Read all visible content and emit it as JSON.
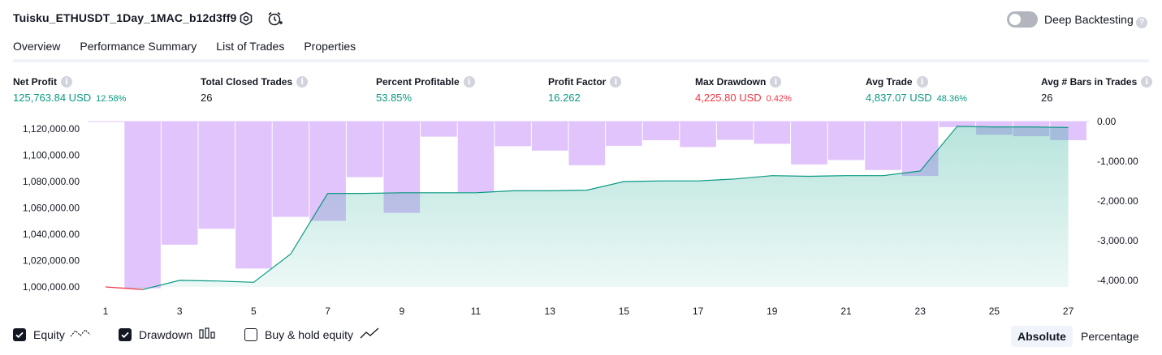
{
  "header": {
    "title": "Tuisku_ETHUSDT_1Day_1MAC_b12d3ff9",
    "deep_backtesting_label": "Deep Backtesting",
    "help_glyph": "?"
  },
  "tabs": [
    {
      "label": "Overview",
      "active": true
    },
    {
      "label": "Performance Summary"
    },
    {
      "label": "List of Trades"
    },
    {
      "label": "Properties"
    }
  ],
  "metrics": [
    {
      "label": "Net Profit",
      "value": "125,763.84 USD",
      "pct": "12.58%",
      "color": "#089981"
    },
    {
      "label": "Total Closed Trades",
      "value": "26",
      "pct": "",
      "color": "#131722"
    },
    {
      "label": "Percent Profitable",
      "value": "53.85%",
      "pct": "",
      "color": "#089981"
    },
    {
      "label": "Profit Factor",
      "value": "16.262",
      "pct": "",
      "color": "#089981"
    },
    {
      "label": "Max Drawdown",
      "value": "4,225.80 USD",
      "pct": "0.42%",
      "color": "#f23645"
    },
    {
      "label": "Avg Trade",
      "value": "4,837.07 USD",
      "pct": "48.36%",
      "color": "#089981"
    },
    {
      "label": "Avg # Bars in Trades",
      "value": "26",
      "pct": "",
      "color": "#131722"
    }
  ],
  "chart_data": {
    "type": "area",
    "equity_axis": {
      "min": 1000000,
      "max": 1120000,
      "tick_labels": [
        "1,120,000.00",
        "1,100,000.00",
        "1,080,000.00",
        "1,060,000.00",
        "1,040,000.00",
        "1,020,000.00",
        "1,000,000.00"
      ]
    },
    "drawdown_axis": {
      "min": -4000,
      "max": 0,
      "tick_labels": [
        "0.00",
        "-1,000.00",
        "-2,000.00",
        "-3,000.00",
        "-4,000.00"
      ]
    },
    "x_tick_labels": [
      "1",
      "3",
      "5",
      "7",
      "9",
      "11",
      "13",
      "15",
      "17",
      "19",
      "21",
      "23",
      "25",
      "27"
    ],
    "x": [
      1,
      2,
      3,
      4,
      5,
      6,
      7,
      8,
      9,
      10,
      11,
      12,
      13,
      14,
      15,
      16,
      17,
      18,
      19,
      20,
      21,
      22,
      23,
      24,
      25,
      26,
      27
    ],
    "equity": [
      1000000,
      998000,
      1005000,
      1004500,
      1003500,
      1025000,
      1071000,
      1071000,
      1071500,
      1071500,
      1071500,
      1073000,
      1073000,
      1073500,
      1080000,
      1080500,
      1080500,
      1082000,
      1084500,
      1084000,
      1084500,
      1084500,
      1088000,
      1122000,
      1121500,
      1121500,
      1121000
    ],
    "drawdown": [
      0,
      -4200,
      -3100,
      -2700,
      -3700,
      -2400,
      -2500,
      -1400,
      -2300,
      -380,
      -1780,
      -620,
      -730,
      -1100,
      -610,
      -470,
      -640,
      -460,
      -560,
      -1080,
      -970,
      -1220,
      -1370,
      -140,
      -330,
      -370,
      -470
    ],
    "equity_color": "#089981",
    "equity_fill": "#22ab94",
    "drawdown_color": "#e1c4fb",
    "negative_equity_color": "#f23645",
    "grid": false
  },
  "legend": {
    "equity": {
      "label": "Equity",
      "checked": true
    },
    "drawdown": {
      "label": "Drawdown",
      "checked": true
    },
    "buy_hold": {
      "label": "Buy & hold equity",
      "checked": false
    }
  },
  "mode": {
    "absolute_label": "Absolute",
    "percentage_label": "Percentage",
    "selected": "Absolute"
  }
}
